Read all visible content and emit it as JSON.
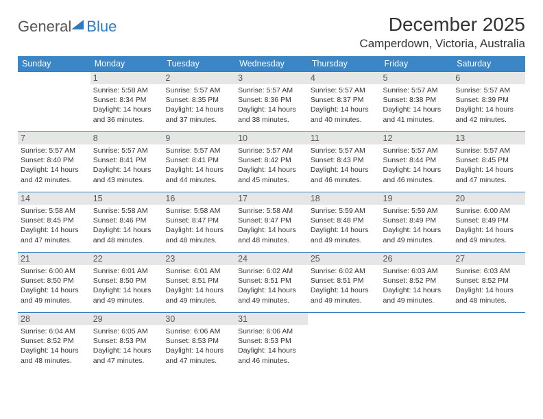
{
  "brand": {
    "name1": "General",
    "name2": "Blue"
  },
  "title": "December 2025",
  "location": "Camperdown, Victoria, Australia",
  "colors": {
    "header_bg": "#3b86c7",
    "header_text": "#ffffff",
    "row_border": "#2e7abf",
    "daynum_bg": "#e6e6e6",
    "text": "#333333",
    "brand_accent": "#2e7abf"
  },
  "typography": {
    "title_fontsize": 28,
    "location_fontsize": 17,
    "dayhead_fontsize": 12.5,
    "daynum_fontsize": 12.5,
    "cell_fontsize": 10.5,
    "brand_fontsize": 22
  },
  "dayheads": [
    "Sunday",
    "Monday",
    "Tuesday",
    "Wednesday",
    "Thursday",
    "Friday",
    "Saturday"
  ],
  "weeks": [
    [
      {
        "day": null
      },
      {
        "day": "1",
        "sunrise": "5:58 AM",
        "sunset": "8:34 PM",
        "daylight": "14 hours and 36 minutes."
      },
      {
        "day": "2",
        "sunrise": "5:57 AM",
        "sunset": "8:35 PM",
        "daylight": "14 hours and 37 minutes."
      },
      {
        "day": "3",
        "sunrise": "5:57 AM",
        "sunset": "8:36 PM",
        "daylight": "14 hours and 38 minutes."
      },
      {
        "day": "4",
        "sunrise": "5:57 AM",
        "sunset": "8:37 PM",
        "daylight": "14 hours and 40 minutes."
      },
      {
        "day": "5",
        "sunrise": "5:57 AM",
        "sunset": "8:38 PM",
        "daylight": "14 hours and 41 minutes."
      },
      {
        "day": "6",
        "sunrise": "5:57 AM",
        "sunset": "8:39 PM",
        "daylight": "14 hours and 42 minutes."
      }
    ],
    [
      {
        "day": "7",
        "sunrise": "5:57 AM",
        "sunset": "8:40 PM",
        "daylight": "14 hours and 42 minutes."
      },
      {
        "day": "8",
        "sunrise": "5:57 AM",
        "sunset": "8:41 PM",
        "daylight": "14 hours and 43 minutes."
      },
      {
        "day": "9",
        "sunrise": "5:57 AM",
        "sunset": "8:41 PM",
        "daylight": "14 hours and 44 minutes."
      },
      {
        "day": "10",
        "sunrise": "5:57 AM",
        "sunset": "8:42 PM",
        "daylight": "14 hours and 45 minutes."
      },
      {
        "day": "11",
        "sunrise": "5:57 AM",
        "sunset": "8:43 PM",
        "daylight": "14 hours and 46 minutes."
      },
      {
        "day": "12",
        "sunrise": "5:57 AM",
        "sunset": "8:44 PM",
        "daylight": "14 hours and 46 minutes."
      },
      {
        "day": "13",
        "sunrise": "5:57 AM",
        "sunset": "8:45 PM",
        "daylight": "14 hours and 47 minutes."
      }
    ],
    [
      {
        "day": "14",
        "sunrise": "5:58 AM",
        "sunset": "8:45 PM",
        "daylight": "14 hours and 47 minutes."
      },
      {
        "day": "15",
        "sunrise": "5:58 AM",
        "sunset": "8:46 PM",
        "daylight": "14 hours and 48 minutes."
      },
      {
        "day": "16",
        "sunrise": "5:58 AM",
        "sunset": "8:47 PM",
        "daylight": "14 hours and 48 minutes."
      },
      {
        "day": "17",
        "sunrise": "5:58 AM",
        "sunset": "8:47 PM",
        "daylight": "14 hours and 48 minutes."
      },
      {
        "day": "18",
        "sunrise": "5:59 AM",
        "sunset": "8:48 PM",
        "daylight": "14 hours and 49 minutes."
      },
      {
        "day": "19",
        "sunrise": "5:59 AM",
        "sunset": "8:49 PM",
        "daylight": "14 hours and 49 minutes."
      },
      {
        "day": "20",
        "sunrise": "6:00 AM",
        "sunset": "8:49 PM",
        "daylight": "14 hours and 49 minutes."
      }
    ],
    [
      {
        "day": "21",
        "sunrise": "6:00 AM",
        "sunset": "8:50 PM",
        "daylight": "14 hours and 49 minutes."
      },
      {
        "day": "22",
        "sunrise": "6:01 AM",
        "sunset": "8:50 PM",
        "daylight": "14 hours and 49 minutes."
      },
      {
        "day": "23",
        "sunrise": "6:01 AM",
        "sunset": "8:51 PM",
        "daylight": "14 hours and 49 minutes."
      },
      {
        "day": "24",
        "sunrise": "6:02 AM",
        "sunset": "8:51 PM",
        "daylight": "14 hours and 49 minutes."
      },
      {
        "day": "25",
        "sunrise": "6:02 AM",
        "sunset": "8:51 PM",
        "daylight": "14 hours and 49 minutes."
      },
      {
        "day": "26",
        "sunrise": "6:03 AM",
        "sunset": "8:52 PM",
        "daylight": "14 hours and 49 minutes."
      },
      {
        "day": "27",
        "sunrise": "6:03 AM",
        "sunset": "8:52 PM",
        "daylight": "14 hours and 48 minutes."
      }
    ],
    [
      {
        "day": "28",
        "sunrise": "6:04 AM",
        "sunset": "8:52 PM",
        "daylight": "14 hours and 48 minutes."
      },
      {
        "day": "29",
        "sunrise": "6:05 AM",
        "sunset": "8:53 PM",
        "daylight": "14 hours and 47 minutes."
      },
      {
        "day": "30",
        "sunrise": "6:06 AM",
        "sunset": "8:53 PM",
        "daylight": "14 hours and 47 minutes."
      },
      {
        "day": "31",
        "sunrise": "6:06 AM",
        "sunset": "8:53 PM",
        "daylight": "14 hours and 46 minutes."
      },
      {
        "day": null
      },
      {
        "day": null
      },
      {
        "day": null
      }
    ]
  ],
  "labels": {
    "sunrise": "Sunrise:",
    "sunset": "Sunset:",
    "daylight": "Daylight:"
  }
}
